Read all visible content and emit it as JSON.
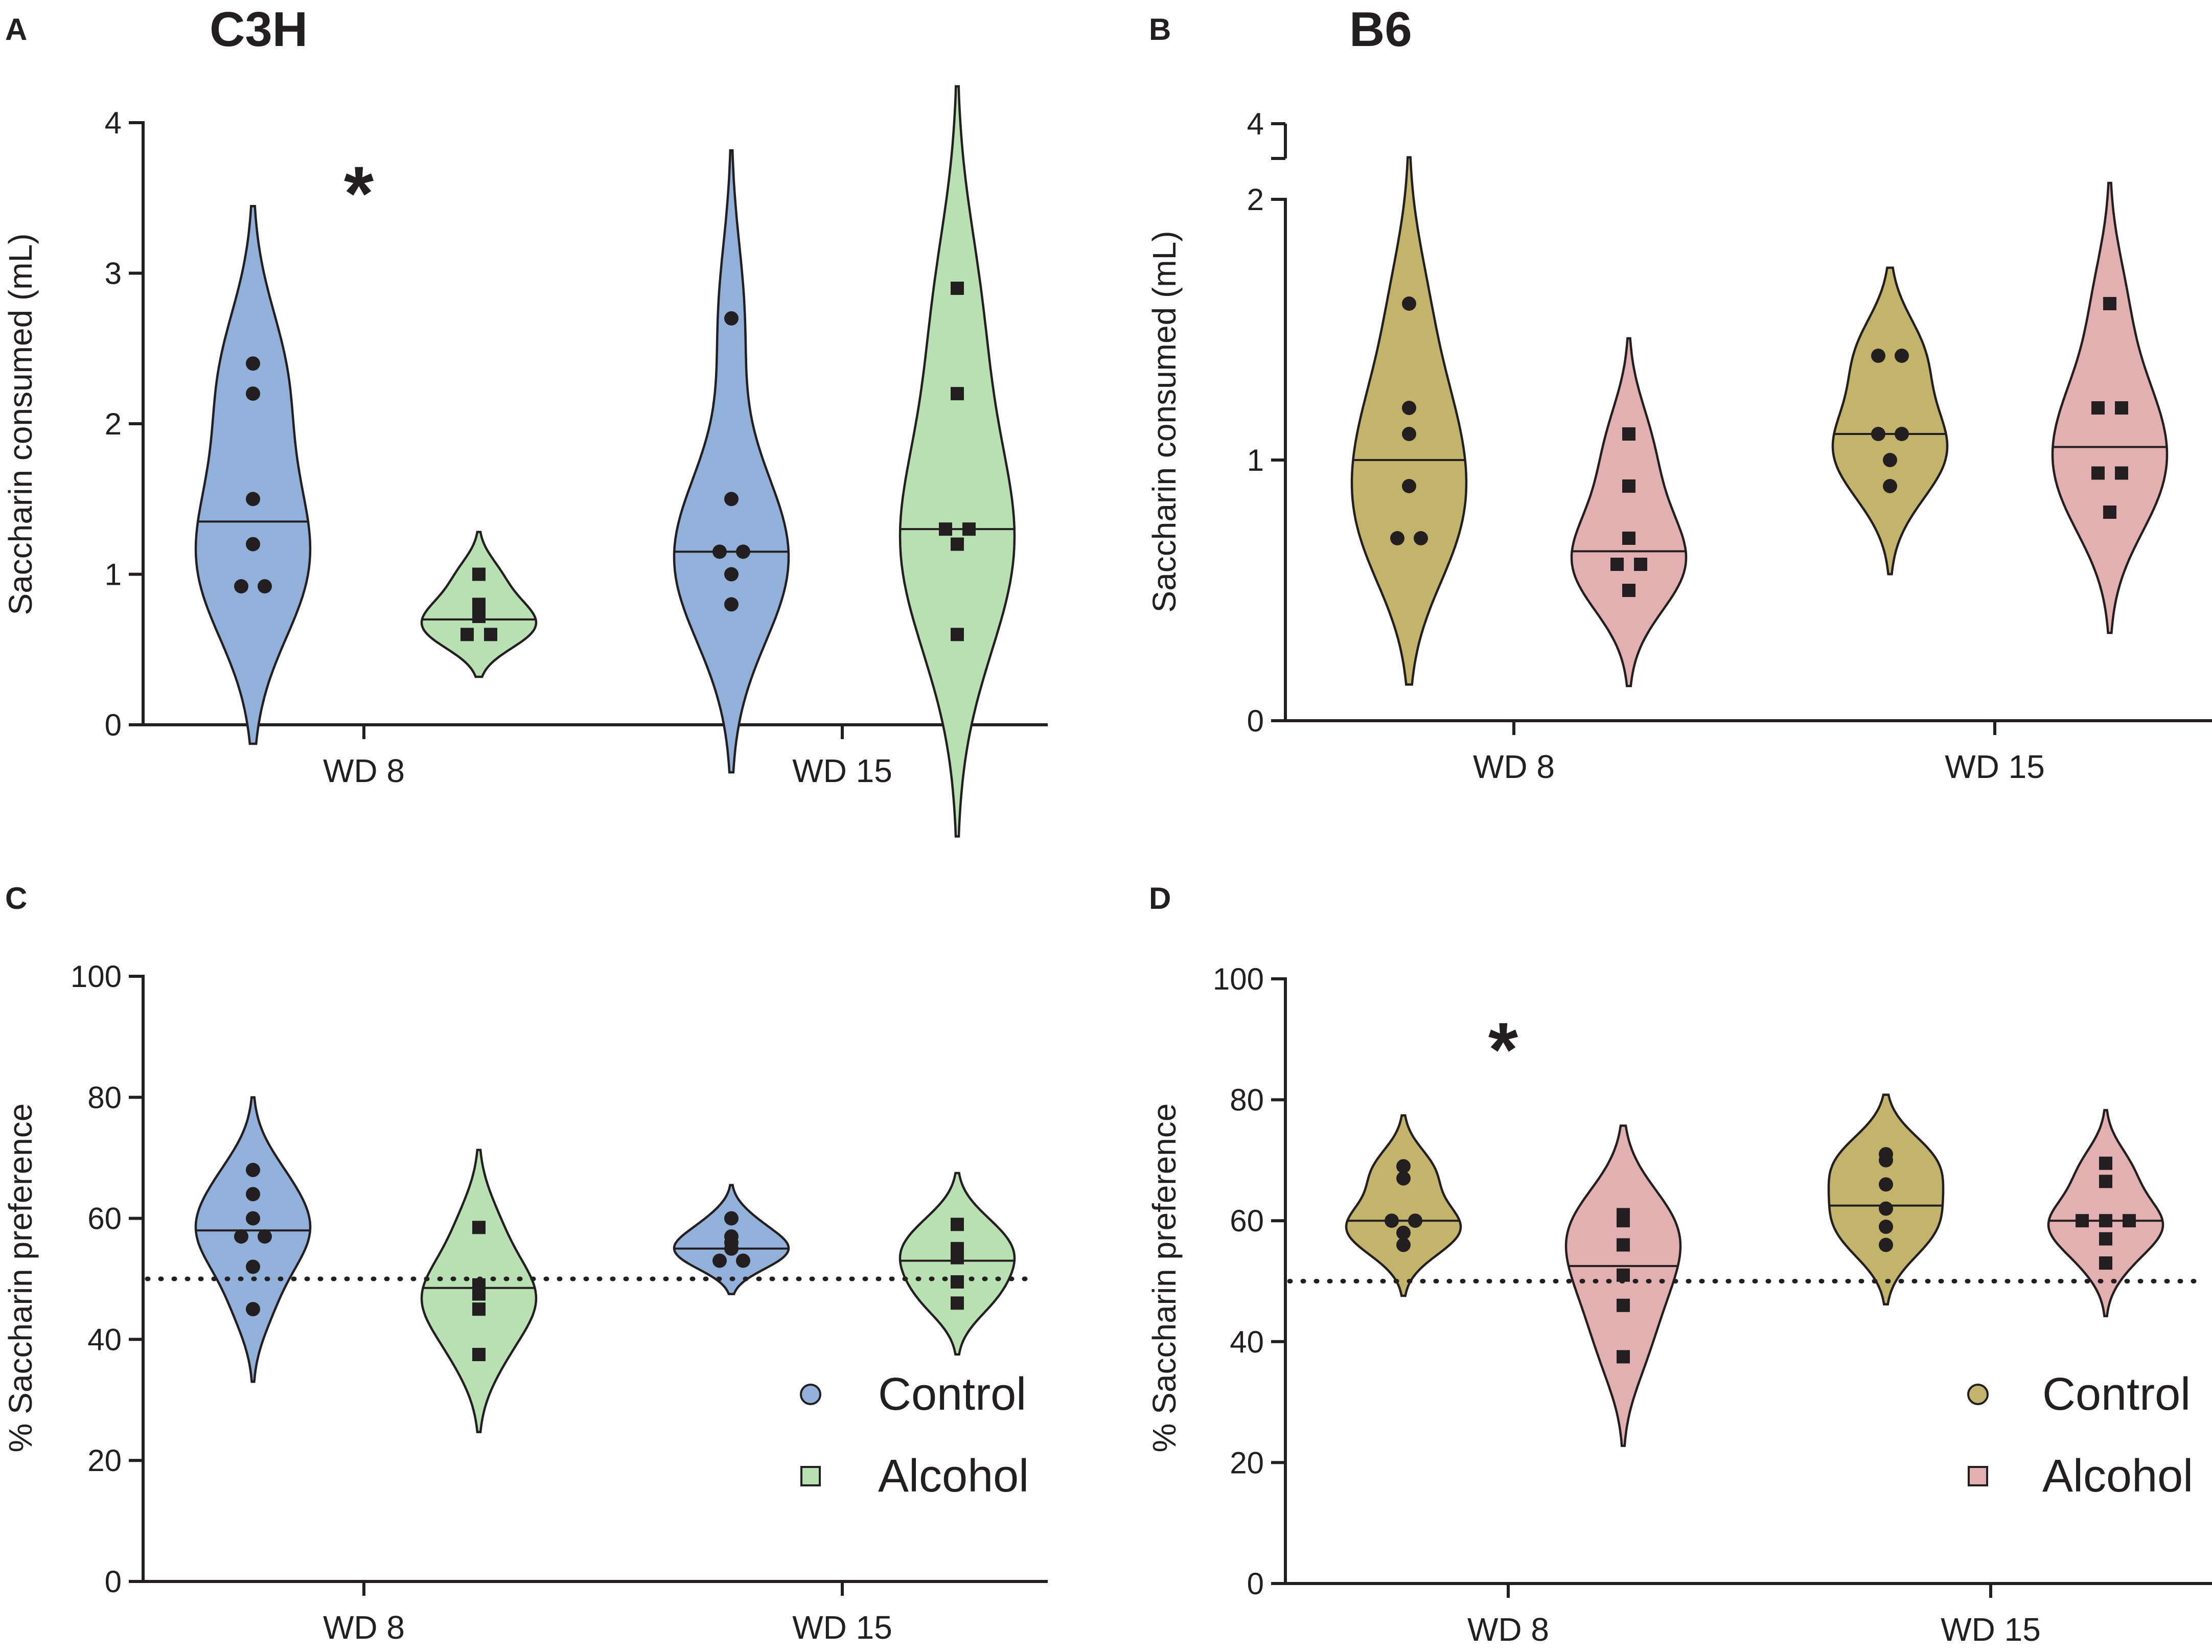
{
  "figure": {
    "strain_titles": [
      "C3H",
      "B6"
    ],
    "legend_left": [
      {
        "label": "Control",
        "color": "#92b1da",
        "marker": "circle"
      },
      {
        "label": "Alcohol",
        "color": "#b9e0b2",
        "marker": "square"
      }
    ],
    "legend_right": [
      {
        "label": "Control",
        "color": "#c2b46a",
        "marker": "circle"
      },
      {
        "label": "Alcohol",
        "color": "#e2b0b0",
        "marker": "square"
      }
    ]
  },
  "chart_data": [
    {
      "panel": "A",
      "title": "C3H",
      "type": "violin",
      "ylabel": "Saccharin consumed (mL)",
      "ylim": [
        0,
        4
      ],
      "yticks": [
        0,
        1,
        2,
        3,
        4
      ],
      "categories": [
        "WD 8",
        "WD 15"
      ],
      "significance": [
        "*",
        ""
      ],
      "series": [
        {
          "name": "Control",
          "color": "#92b1da",
          "marker": "circle",
          "groups": [
            {
              "points": [
                2.4,
                2.2,
                1.5,
                1.2,
                0.92,
                0.92
              ],
              "median": 1.35
            },
            {
              "points": [
                2.7,
                1.5,
                1.15,
                1.15,
                1.0,
                0.8
              ],
              "median": 1.15
            }
          ]
        },
        {
          "name": "Alcohol",
          "color": "#b9e0b2",
          "marker": "square",
          "groups": [
            {
              "points": [
                1.0,
                0.8,
                0.72,
                0.6,
                0.6
              ],
              "median": 0.7
            },
            {
              "points": [
                2.9,
                2.2,
                1.3,
                1.3,
                1.2,
                0.6
              ],
              "median": 1.3
            }
          ]
        }
      ]
    },
    {
      "panel": "B",
      "title": "B6",
      "type": "violin",
      "ylabel": "Saccharin consumed (mL)",
      "ylim": [
        0,
        2
      ],
      "yticks": [
        0,
        1,
        2
      ],
      "axis_break_top_tick": 4,
      "categories": [
        "WD 8",
        "WD 15"
      ],
      "significance": [
        "",
        ""
      ],
      "series": [
        {
          "name": "Control",
          "color": "#c2b46a",
          "marker": "circle",
          "groups": [
            {
              "points": [
                1.6,
                1.2,
                1.1,
                0.9,
                0.7,
                0.7
              ],
              "median": 1.0
            },
            {
              "points": [
                1.4,
                1.4,
                1.1,
                1.1,
                1.0,
                0.9
              ],
              "median": 1.1
            }
          ]
        },
        {
          "name": "Alcohol",
          "color": "#e2b0b0",
          "marker": "square",
          "groups": [
            {
              "points": [
                1.1,
                0.9,
                0.7,
                0.6,
                0.6,
                0.5
              ],
              "median": 0.65
            },
            {
              "points": [
                1.6,
                1.2,
                1.2,
                0.95,
                0.95,
                0.8
              ],
              "median": 1.05
            }
          ]
        }
      ]
    },
    {
      "panel": "C",
      "type": "violin",
      "ylabel": "% Saccharin preference",
      "ylim": [
        0,
        100
      ],
      "yticks": [
        0,
        20,
        40,
        60,
        80,
        100
      ],
      "reference_line": 50,
      "categories": [
        "WD 8",
        "WD 15"
      ],
      "significance": [
        "",
        ""
      ],
      "series": [
        {
          "name": "Control",
          "color": "#92b1da",
          "marker": "circle",
          "groups": [
            {
              "points": [
                68,
                64,
                60,
                57,
                57,
                52,
                45
              ],
              "median": 58
            },
            {
              "points": [
                60,
                57,
                56,
                55,
                53,
                53
              ],
              "median": 55
            }
          ]
        },
        {
          "name": "Alcohol",
          "color": "#b9e0b2",
          "marker": "square",
          "groups": [
            {
              "points": [
                58.5,
                49,
                47.5,
                45,
                37.5
              ],
              "median": 48.5
            },
            {
              "points": [
                59,
                55,
                53.5,
                49.5,
                46
              ],
              "median": 53
            }
          ]
        }
      ]
    },
    {
      "panel": "D",
      "type": "violin",
      "ylabel": "% Saccharin preference",
      "ylim": [
        0,
        100
      ],
      "yticks": [
        0,
        20,
        40,
        60,
        80,
        100
      ],
      "reference_line": 50,
      "categories": [
        "WD 8",
        "WD 15"
      ],
      "significance": [
        "*",
        ""
      ],
      "series": [
        {
          "name": "Control",
          "color": "#c2b46a",
          "marker": "circle",
          "groups": [
            {
              "points": [
                69,
                67,
                60,
                60,
                58,
                56
              ],
              "median": 60
            },
            {
              "points": [
                71,
                70,
                66,
                62,
                59,
                56
              ],
              "median": 62.5
            }
          ]
        },
        {
          "name": "Alcohol",
          "color": "#e2b0b0",
          "marker": "square",
          "groups": [
            {
              "points": [
                61,
                60,
                56,
                51,
                46,
                37.5
              ],
              "median": 52.5
            },
            {
              "points": [
                69.5,
                66.5,
                60,
                60,
                60,
                57,
                53
              ],
              "median": 60
            }
          ]
        }
      ]
    }
  ]
}
